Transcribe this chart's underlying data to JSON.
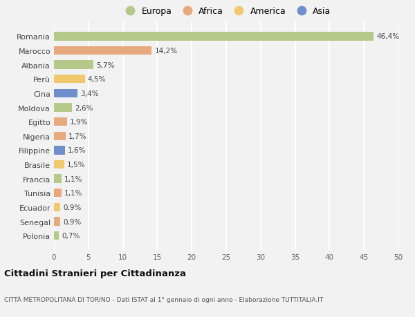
{
  "categories": [
    "Romania",
    "Marocco",
    "Albania",
    "Perù",
    "Cina",
    "Moldova",
    "Egitto",
    "Nigeria",
    "Filippine",
    "Brasile",
    "Francia",
    "Tunisia",
    "Ecuador",
    "Senegal",
    "Polonia"
  ],
  "values": [
    46.4,
    14.2,
    5.7,
    4.5,
    3.4,
    2.6,
    1.9,
    1.7,
    1.6,
    1.5,
    1.1,
    1.1,
    0.9,
    0.9,
    0.7
  ],
  "labels": [
    "46,4%",
    "14,2%",
    "5,7%",
    "4,5%",
    "3,4%",
    "2,6%",
    "1,9%",
    "1,7%",
    "1,6%",
    "1,5%",
    "1,1%",
    "1,1%",
    "0,9%",
    "0,9%",
    "0,7%"
  ],
  "colors": [
    "#b5c98a",
    "#e8a97e",
    "#b5c98a",
    "#f0c96e",
    "#6e8fc9",
    "#b5c98a",
    "#e8a97e",
    "#e8a97e",
    "#6e8fc9",
    "#f0c96e",
    "#b5c98a",
    "#e8a97e",
    "#f0c96e",
    "#e8a97e",
    "#b5c98a"
  ],
  "legend_labels": [
    "Europa",
    "Africa",
    "America",
    "Asia"
  ],
  "legend_colors": [
    "#b5c98a",
    "#e8a97e",
    "#f0c96e",
    "#6e8fc9"
  ],
  "xlim": [
    0,
    50
  ],
  "xticks": [
    0,
    5,
    10,
    15,
    20,
    25,
    30,
    35,
    40,
    45,
    50
  ],
  "title": "Cittadini Stranieri per Cittadinanza",
  "subtitle": "CITTÀ METROPOLITANA DI TORINO - Dati ISTAT al 1° gennaio di ogni anno - Elaborazione TUTTITALIA.IT",
  "bg_color": "#f2f2f2",
  "grid_color": "#ffffff",
  "bar_height": 0.6
}
